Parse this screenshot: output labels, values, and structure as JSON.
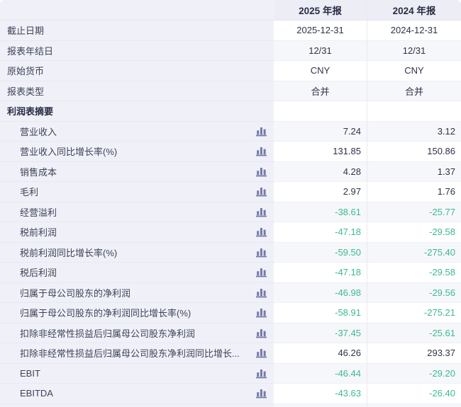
{
  "table": {
    "column_headers": [
      "2025 年报",
      "2024 年报"
    ],
    "rows": [
      {
        "label": "截止日期",
        "type": "info",
        "values": [
          "2025-12-31",
          "2024-12-31"
        ]
      },
      {
        "label": "报表年结日",
        "type": "info",
        "values": [
          "12/31",
          "12/31"
        ]
      },
      {
        "label": "原始货币",
        "type": "info",
        "values": [
          "CNY",
          "CNY"
        ]
      },
      {
        "label": "报表类型",
        "type": "info",
        "values": [
          "合并",
          "合并"
        ]
      },
      {
        "label": "利润表摘要",
        "type": "section",
        "values": [
          "",
          ""
        ]
      },
      {
        "label": "营业收入",
        "type": "metric",
        "values": [
          "7.24",
          "3.12"
        ]
      },
      {
        "label": "营业收入同比增长率(%)",
        "type": "metric",
        "values": [
          "131.85",
          "150.86"
        ]
      },
      {
        "label": "销售成本",
        "type": "metric",
        "values": [
          "4.28",
          "1.37"
        ]
      },
      {
        "label": "毛利",
        "type": "metric",
        "values": [
          "2.97",
          "1.76"
        ]
      },
      {
        "label": "经营溢利",
        "type": "metric",
        "values": [
          "-38.61",
          "-25.77"
        ]
      },
      {
        "label": "税前利润",
        "type": "metric",
        "values": [
          "-47.18",
          "-29.58"
        ]
      },
      {
        "label": "税前利润同比增长率(%)",
        "type": "metric",
        "values": [
          "-59.50",
          "-275.40"
        ]
      },
      {
        "label": "税后利润",
        "type": "metric",
        "values": [
          "-47.18",
          "-29.58"
        ]
      },
      {
        "label": "归属于母公司股东的净利润",
        "type": "metric",
        "values": [
          "-46.98",
          "-29.56"
        ]
      },
      {
        "label": "归属于母公司股东的净利润同比增长率(%)",
        "type": "metric",
        "values": [
          "-58.91",
          "-275.21"
        ]
      },
      {
        "label": "扣除非经常性损益后归属母公司股东净利润",
        "type": "metric",
        "values": [
          "-37.45",
          "-25.61"
        ]
      },
      {
        "label": "扣除非经常性损益后归属母公司股东净利润同比增长...",
        "type": "metric",
        "values": [
          "46.26",
          "293.37"
        ]
      },
      {
        "label": "EBIT",
        "type": "metric",
        "values": [
          "-46.44",
          "-29.20"
        ]
      },
      {
        "label": "EBITDA",
        "type": "metric",
        "values": [
          "-43.63",
          "-26.40"
        ]
      }
    ],
    "row_icon": "bar-chart-icon"
  },
  "colors": {
    "negative_value": "#3bbb8d",
    "default_value": "#2e3247",
    "label_text": "#3d4257",
    "header_text": "#272c42",
    "label_column_bg": "#f0f1f8",
    "header_bg": "#ededf6",
    "alt_row_bg": "#f6f7fb",
    "icon": "#7579a8"
  }
}
